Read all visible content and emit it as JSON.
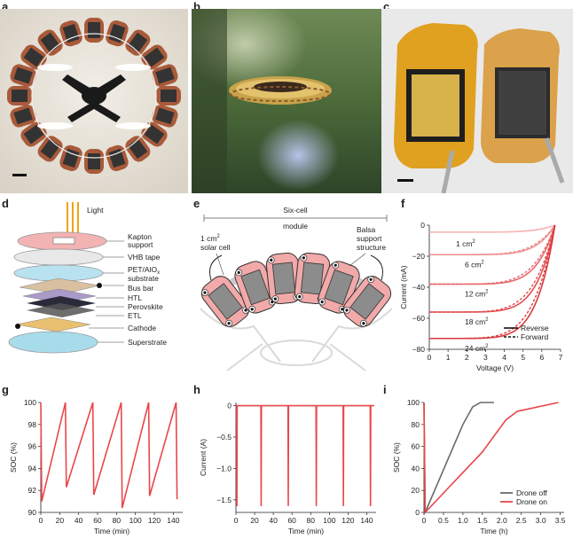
{
  "panels": {
    "a": "a",
    "b": "b",
    "c": "c",
    "d": "d",
    "e": "e",
    "f": "f",
    "g": "g",
    "h": "h",
    "i": "i"
  },
  "diagram_d": {
    "light": "Light",
    "labels": [
      "Kapton",
      "support",
      "VHB tape",
      "PET/AlO",
      "substrate",
      "Bus bar",
      "HTL",
      "Perovskite",
      "ETL",
      "Cathode",
      "Superstrate"
    ],
    "sub_x": "x"
  },
  "diagram_e": {
    "module_line1": "Six-cell",
    "module_line2": "module",
    "cell_line1": "1 cm",
    "cell_sup": "2",
    "cell_line2": "solar cell",
    "balsa_line1": "Balsa",
    "balsa_line2": "support",
    "balsa_line3": "structure"
  },
  "colors": {
    "red": "#e8474a",
    "gray": "#6b6b6b",
    "pink": "#f2a9a9"
  },
  "chart_data": [
    {
      "id": "f",
      "type": "line",
      "xlabel": "Voltage (V)",
      "ylabel": "Current (mA)",
      "xlim": [
        0,
        7
      ],
      "ylim": [
        -80,
        0
      ],
      "xticks": [
        "0",
        "1",
        "2",
        "3",
        "4",
        "5",
        "6",
        "7"
      ],
      "yticks": [
        "0",
        "−20",
        "−40",
        "−60",
        "−80"
      ],
      "legend": [
        "Reverse",
        "Forward"
      ],
      "series_labels": [
        "1 cm",
        "6 cm",
        "12 cm",
        "18 cm",
        "24 cm"
      ],
      "sup": "2",
      "series": [
        {
          "isc": -4.5,
          "voc": 6.7
        },
        {
          "isc": -19,
          "voc": 6.7
        },
        {
          "isc": -38,
          "voc": 6.7
        },
        {
          "isc": -56,
          "voc": 6.7
        },
        {
          "isc": -73,
          "voc": 6.7
        }
      ]
    },
    {
      "id": "g",
      "type": "line",
      "xlabel": "Time (min)",
      "ylabel": "SOC (%)",
      "xlim": [
        0,
        150
      ],
      "ylim": [
        90,
        100
      ],
      "xticks": [
        "0",
        "20",
        "40",
        "60",
        "80",
        "100",
        "120",
        "140"
      ],
      "yticks": [
        "90",
        "92",
        "94",
        "96",
        "98",
        "100"
      ],
      "points": [
        [
          0,
          100
        ],
        [
          1,
          91
        ],
        [
          26,
          100
        ],
        [
          27,
          92.3
        ],
        [
          55,
          100
        ],
        [
          56,
          91.6
        ],
        [
          85,
          100
        ],
        [
          86,
          90.4
        ],
        [
          114,
          100
        ],
        [
          115,
          91.5
        ],
        [
          143,
          100
        ],
        [
          144,
          91.2
        ]
      ]
    },
    {
      "id": "h",
      "type": "line",
      "xlabel": "Time (min)",
      "ylabel": "Current (A)",
      "xlim": [
        0,
        150
      ],
      "ylim": [
        -1.7,
        0.05
      ],
      "xticks": [
        "0",
        "20",
        "40",
        "60",
        "80",
        "100",
        "120",
        "140"
      ],
      "yticks": [
        "0",
        "−0.5",
        "−1.0",
        "−1.5"
      ],
      "spikes": [
        1,
        27,
        56,
        86,
        115,
        144
      ],
      "spike_value": -1.6
    },
    {
      "id": "i",
      "type": "line",
      "xlabel": "Time (h)",
      "ylabel": "SOC (%)",
      "xlim": [
        0,
        3.6
      ],
      "ylim": [
        0,
        100
      ],
      "xticks": [
        "0",
        "0.5",
        "1.0",
        "1.5",
        "2.0",
        "2.5",
        "3.0",
        "3.5"
      ],
      "yticks": [
        "0",
        "20",
        "40",
        "60",
        "80",
        "100"
      ],
      "legend": [
        "Drone off",
        "Drone on"
      ],
      "series": [
        {
          "name": "Drone off",
          "points": [
            [
              0,
              100
            ],
            [
              0.03,
              0
            ],
            [
              1.0,
              80
            ],
            [
              1.25,
              96
            ],
            [
              1.45,
              100
            ],
            [
              1.8,
              100
            ]
          ]
        },
        {
          "name": "Drone on",
          "points": [
            [
              0,
              100
            ],
            [
              0.03,
              0
            ],
            [
              1.5,
              55
            ],
            [
              2.1,
              84
            ],
            [
              2.4,
              92
            ],
            [
              3.45,
              100
            ]
          ]
        }
      ]
    }
  ]
}
